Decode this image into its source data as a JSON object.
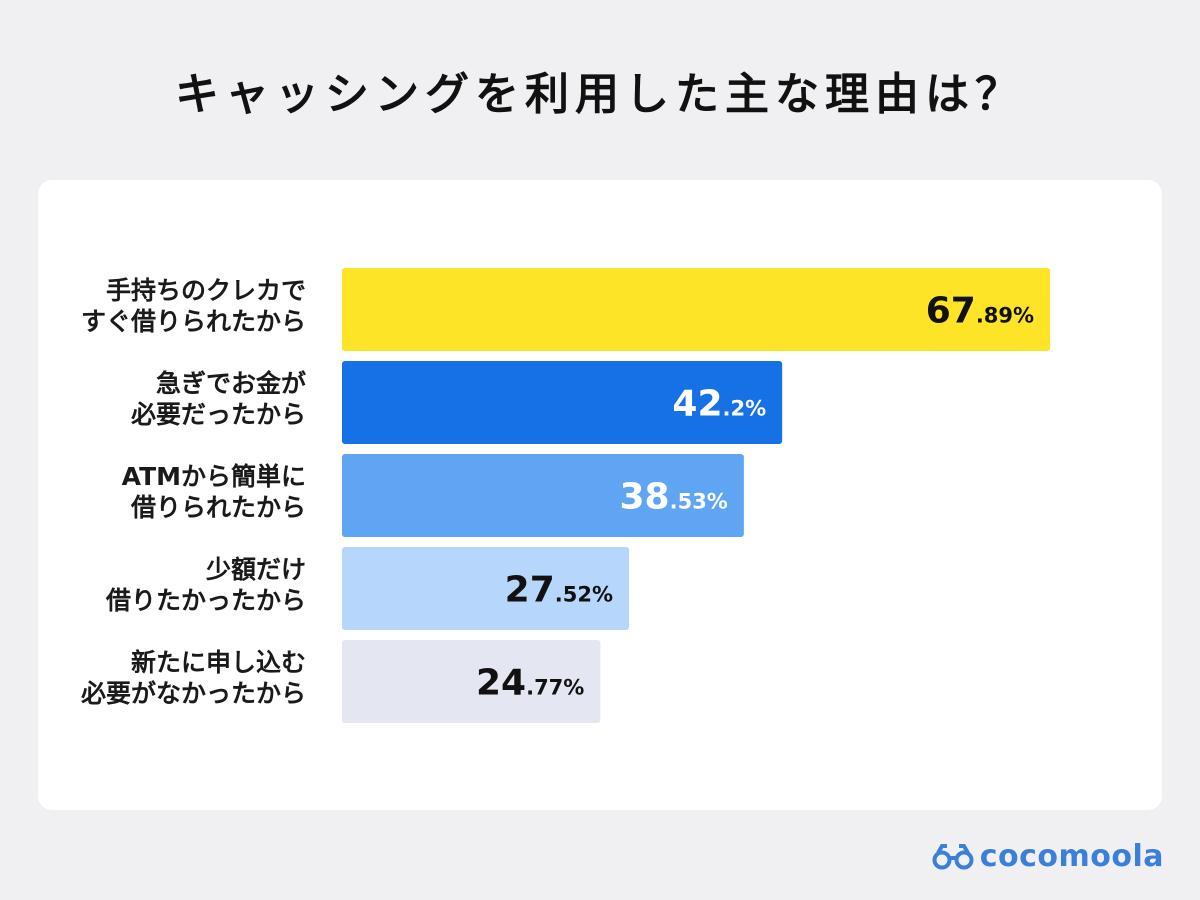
{
  "page": {
    "title": "キャッシングを利用した主な理由は？"
  },
  "brand": {
    "name": "cocomoola",
    "icon": "binoculars-logo-icon",
    "color": "#3a7fd8"
  },
  "chart_data": {
    "type": "bar",
    "orientation": "horizontal",
    "title": "キャッシングを利用した主な理由は？",
    "xlabel": "",
    "ylabel": "",
    "xlim": [
      0,
      100
    ],
    "unit": "%",
    "grid": false,
    "legend": "none",
    "categories": [
      [
        "手持ちのクレカで",
        "すぐ借りられたから"
      ],
      [
        "急ぎでお金が",
        "必要だったから"
      ],
      [
        "ATMから簡単に",
        "借りられたから"
      ],
      [
        "少額だけ",
        "借りたかったから"
      ],
      [
        "新たに申し込む",
        "必要がなかったから"
      ]
    ],
    "values": [
      67.89,
      42.2,
      38.53,
      27.52,
      24.77
    ],
    "value_labels": [
      {
        "int": "67",
        "dec": ".89%"
      },
      {
        "int": "42",
        "dec": ".2%"
      },
      {
        "int": "38",
        "dec": ".53%"
      },
      {
        "int": "27",
        "dec": ".52%"
      },
      {
        "int": "24",
        "dec": ".77%"
      }
    ],
    "bar_colors": [
      "#fde426",
      "#1671e6",
      "#5fa5f3",
      "#b6d6fb",
      "#e4e7f1"
    ],
    "label_colors": [
      "#111111",
      "#ffffff",
      "#ffffff",
      "#111111",
      "#111111"
    ]
  }
}
